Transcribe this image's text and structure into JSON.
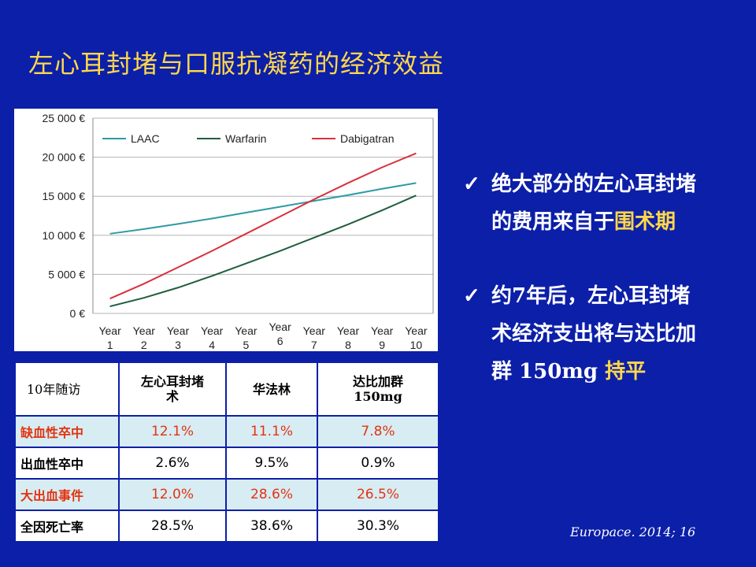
{
  "slide": {
    "title": "左心耳封堵与口服抗凝药的经济效益",
    "citation": "Europace. 2014; 16"
  },
  "chart_data": {
    "type": "line",
    "x": [
      "Year 1",
      "Year 2",
      "Year 3",
      "Year 4",
      "Year 5",
      "Year 6",
      "Year 7",
      "Year 8",
      "Year 9",
      "Year 10"
    ],
    "x_tick_lines": [
      [
        "Year",
        "1"
      ],
      [
        "Year",
        "2"
      ],
      [
        "Year",
        "3"
      ],
      [
        "Year",
        "4"
      ],
      [
        "Year",
        "5"
      ],
      [
        "Year",
        "6"
      ],
      [
        "Year",
        "7"
      ],
      [
        "Year",
        "8"
      ],
      [
        "Year",
        "9"
      ],
      [
        "Year",
        "10"
      ]
    ],
    "series": [
      {
        "name": "LAAC",
        "color": "#2e9aa6",
        "values": [
          10200,
          10800,
          11450,
          12150,
          12900,
          13650,
          14400,
          15150,
          15950,
          16700
        ]
      },
      {
        "name": "Warfarin",
        "color": "#1e5e3e",
        "values": [
          900,
          2000,
          3300,
          4800,
          6400,
          8000,
          9700,
          11400,
          13200,
          15100
        ]
      },
      {
        "name": "Dabigatran",
        "color": "#d9313c",
        "values": [
          1900,
          3800,
          5900,
          8000,
          10200,
          12400,
          14600,
          16700,
          18700,
          20500
        ]
      }
    ],
    "y_ticks": [
      "0 €",
      "5 000 €",
      "10 000 €",
      "15 000 €",
      "20 000 €",
      "25 000 €"
    ],
    "ylim": [
      0,
      25000
    ],
    "grid": true,
    "legend": "top"
  },
  "table": {
    "headers": [
      "10年随访",
      "左心耳封堵\n术",
      "华法林",
      "达比加群\n150mg"
    ],
    "rows": [
      {
        "label": "缺血性卒中",
        "values": [
          "12.1%",
          "11.1%",
          "7.8%"
        ],
        "highlight": true
      },
      {
        "label": "出血性卒中",
        "values": [
          "2.6%",
          "9.5%",
          "0.9%"
        ],
        "highlight": false
      },
      {
        "label": "大出血事件",
        "values": [
          "12.0%",
          "28.6%",
          "26.5%"
        ],
        "highlight": true
      },
      {
        "label": "全因死亡率",
        "values": [
          "28.5%",
          "38.6%",
          "30.3%"
        ],
        "highlight": false
      }
    ]
  },
  "bullets": [
    {
      "check": "✓",
      "lines": [
        [
          "绝大部分的左心耳封堵",
          ""
        ],
        [
          "的费用来自于",
          "围术期"
        ]
      ]
    },
    {
      "check": "✓",
      "lines": [
        [
          "约7年后，左心耳封堵",
          ""
        ],
        [
          "术经济支出将与达比加",
          ""
        ],
        [
          "群 150mg ",
          "持平"
        ]
      ]
    }
  ]
}
